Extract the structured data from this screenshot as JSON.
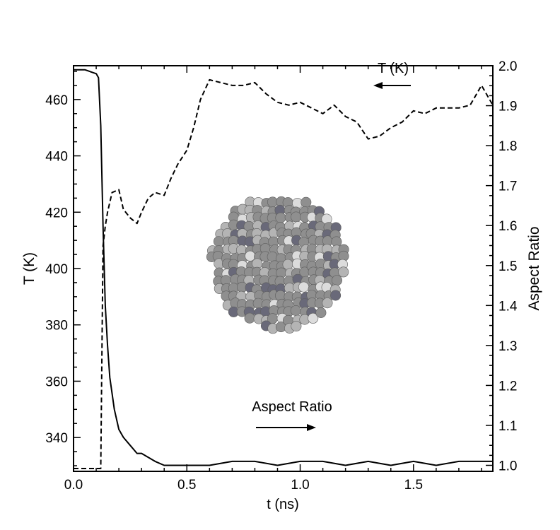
{
  "chart_data": {
    "type": "line",
    "xlabel": "t (ns)",
    "ylabel_left": "T (K)",
    "ylabel_right": "Aspect Ratio",
    "xlim": [
      0,
      1.85
    ],
    "ylim_left": [
      328,
      472
    ],
    "ylim_right": [
      0.985,
      2.0
    ],
    "x_ticks": [
      "0.0",
      "0.5",
      "1.0",
      "1.5"
    ],
    "y_ticks_left": [
      "340",
      "360",
      "380",
      "400",
      "420",
      "440",
      "460"
    ],
    "y_ticks_right": [
      "1.0",
      "1.1",
      "1.2",
      "1.3",
      "1.4",
      "1.5",
      "1.6",
      "1.7",
      "1.8",
      "1.9",
      "2.0"
    ],
    "grid": false,
    "series": [
      {
        "name": "T (K)",
        "axis": "left",
        "style": "dashed",
        "x": [
          0.0,
          0.05,
          0.1,
          0.12,
          0.13,
          0.14,
          0.15,
          0.17,
          0.2,
          0.22,
          0.25,
          0.28,
          0.3,
          0.33,
          0.36,
          0.4,
          0.43,
          0.46,
          0.5,
          0.53,
          0.56,
          0.6,
          0.65,
          0.7,
          0.75,
          0.8,
          0.85,
          0.9,
          0.95,
          1.0,
          1.05,
          1.1,
          1.15,
          1.2,
          1.25,
          1.3,
          1.35,
          1.4,
          1.45,
          1.5,
          1.55,
          1.6,
          1.65,
          1.7,
          1.75,
          1.8,
          1.85
        ],
        "values": [
          329,
          329,
          329,
          329,
          408,
          415,
          420,
          427,
          428,
          421,
          418,
          416,
          420,
          425,
          427,
          426,
          432,
          437,
          442,
          450,
          460,
          467,
          466,
          465,
          465,
          466,
          462,
          459,
          458,
          459,
          457,
          455,
          458,
          454,
          452,
          446,
          447,
          450,
          452,
          456,
          455,
          457,
          457,
          457,
          458,
          465,
          458
        ]
      },
      {
        "name": "Aspect Ratio",
        "axis": "right",
        "style": "solid",
        "x": [
          0.0,
          0.05,
          0.1,
          0.11,
          0.12,
          0.13,
          0.14,
          0.15,
          0.16,
          0.18,
          0.2,
          0.22,
          0.25,
          0.28,
          0.3,
          0.33,
          0.36,
          0.4,
          0.45,
          0.5,
          0.6,
          0.7,
          0.8,
          0.9,
          1.0,
          1.1,
          1.2,
          1.3,
          1.4,
          1.5,
          1.6,
          1.7,
          1.8,
          1.85
        ],
        "values": [
          1.99,
          1.99,
          1.98,
          1.97,
          1.85,
          1.6,
          1.4,
          1.3,
          1.22,
          1.14,
          1.09,
          1.07,
          1.05,
          1.03,
          1.03,
          1.02,
          1.01,
          1.0,
          1.0,
          1.0,
          1.0,
          1.01,
          1.01,
          1.0,
          1.01,
          1.01,
          1.0,
          1.01,
          1.0,
          1.01,
          1.0,
          1.01,
          1.01,
          1.01
        ]
      }
    ],
    "annotations": [
      {
        "text": "T (K)",
        "arrow": "left"
      },
      {
        "text": "Aspect Ratio",
        "arrow": "right"
      }
    ],
    "inset": {
      "description": "nanoparticle-sphere",
      "colors": [
        "#8f8f8f",
        "#b4b4b4",
        "#696979",
        "#dcdcdc"
      ]
    }
  }
}
